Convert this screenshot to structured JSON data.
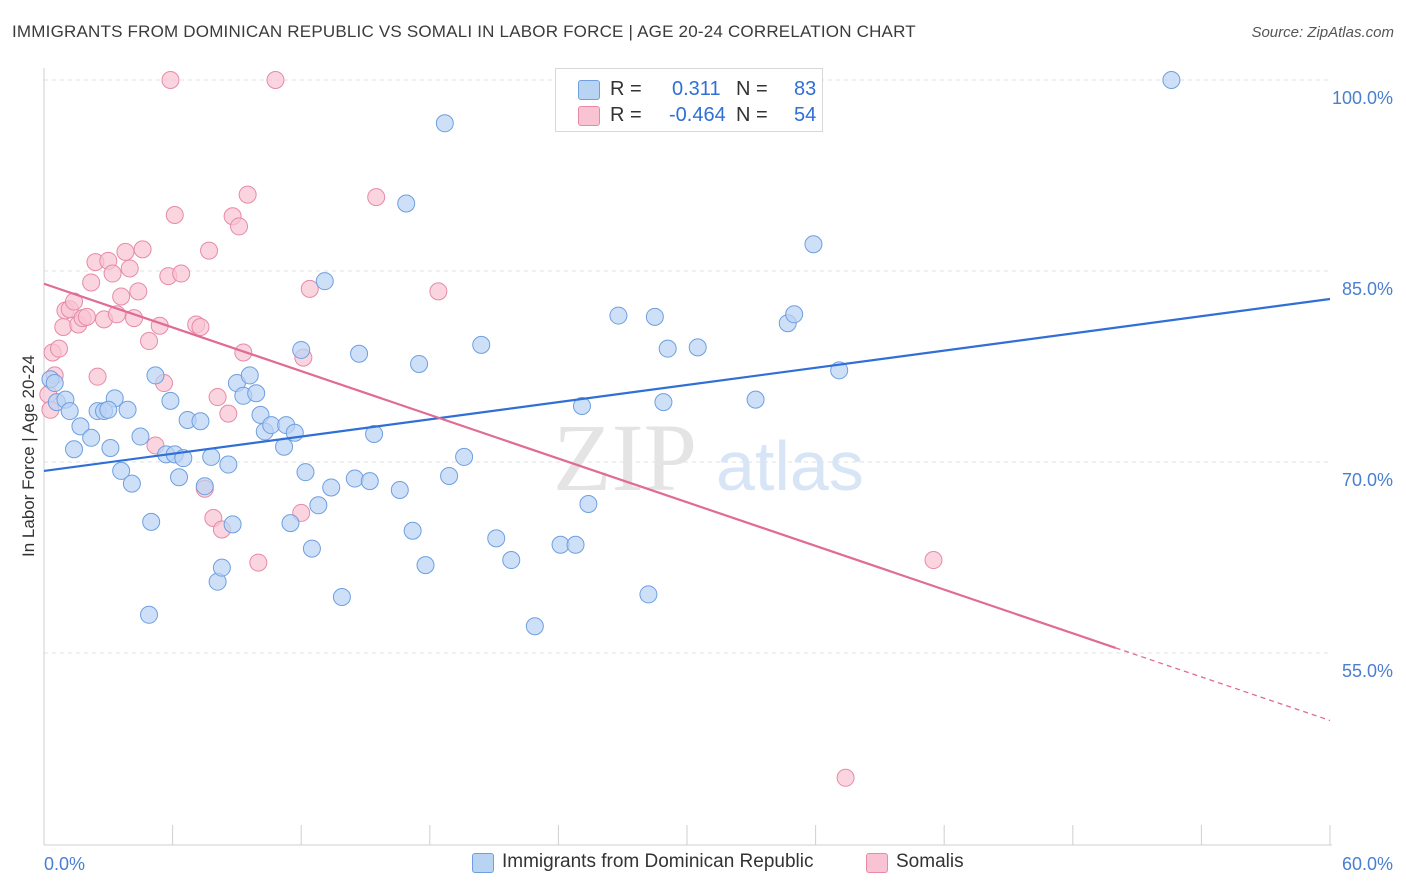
{
  "title": "IMMIGRANTS FROM DOMINICAN REPUBLIC VS SOMALI IN LABOR FORCE | AGE 20-24 CORRELATION CHART",
  "source": "Source: ZipAtlas.com",
  "watermark": {
    "zip": "ZIP",
    "atlas": "atlas"
  },
  "legend": {
    "rows": [
      {
        "r_label": "R =",
        "r_value": "0.311",
        "n_label": "N =",
        "n_value": "83"
      },
      {
        "r_label": "R =",
        "r_value": "-0.464",
        "n_label": "N =",
        "n_value": "54"
      }
    ]
  },
  "bottom_legend": [
    "Immigrants from Dominican Republic",
    "Somalis"
  ],
  "colors": {
    "blue_fill": "#b9d3f3",
    "blue_stroke": "#6e9fe0",
    "blue_line": "#2f6fd6",
    "pink_fill": "#f8c3d3",
    "pink_stroke": "#e78aa8",
    "pink_line": "#e06b94",
    "grid": "#e2e2e2",
    "tick_text": "#4a7fcf"
  },
  "chart_data": {
    "type": "scatter",
    "title": "IMMIGRANTS FROM DOMINICAN REPUBLIC VS SOMALI IN LABOR FORCE | AGE 20-24 CORRELATION CHART",
    "xlabel": "",
    "ylabel": "In Labor Force | Age 20-24",
    "xlim": [
      0,
      60
    ],
    "ylim": [
      40,
      102
    ],
    "x_tick_labels": [
      "0.0%",
      "60.0%"
    ],
    "y_ticks": [
      55,
      70,
      85,
      100
    ],
    "y_tick_labels": [
      "55.0%",
      "70.0%",
      "85.0%",
      "100.0%"
    ],
    "grid": true,
    "legend_position": "top-center",
    "series": [
      {
        "name": "Immigrants from Dominican Republic",
        "color": "#6e9fe0",
        "trend": {
          "x": [
            0,
            60
          ],
          "y": [
            69.3,
            82.8
          ]
        },
        "points": [
          [
            0.3,
            76.5
          ],
          [
            0.5,
            76.2
          ],
          [
            0.6,
            74.7
          ],
          [
            1.0,
            74.9
          ],
          [
            1.2,
            74.0
          ],
          [
            1.4,
            71.0
          ],
          [
            1.7,
            72.8
          ],
          [
            2.2,
            71.9
          ],
          [
            2.5,
            74.0
          ],
          [
            2.8,
            74.0
          ],
          [
            3.1,
            71.1
          ],
          [
            3.3,
            75.0
          ],
          [
            3.6,
            69.3
          ],
          [
            3.9,
            74.1
          ],
          [
            4.1,
            68.3
          ],
          [
            4.5,
            72.0
          ],
          [
            4.9,
            58.0
          ],
          [
            5.0,
            65.3
          ],
          [
            5.2,
            76.8
          ],
          [
            5.7,
            70.6
          ],
          [
            5.9,
            74.8
          ],
          [
            6.1,
            70.6
          ],
          [
            6.3,
            68.8
          ],
          [
            6.5,
            70.3
          ],
          [
            6.7,
            73.3
          ],
          [
            7.3,
            73.2
          ],
          [
            7.5,
            68.1
          ],
          [
            7.8,
            70.4
          ],
          [
            8.1,
            60.6
          ],
          [
            8.3,
            61.7
          ],
          [
            8.6,
            69.8
          ],
          [
            8.8,
            65.1
          ],
          [
            9.0,
            76.2
          ],
          [
            9.3,
            75.2
          ],
          [
            9.6,
            76.8
          ],
          [
            9.9,
            75.4
          ],
          [
            10.1,
            73.7
          ],
          [
            10.3,
            72.4
          ],
          [
            10.6,
            72.9
          ],
          [
            11.2,
            71.2
          ],
          [
            11.3,
            72.9
          ],
          [
            11.5,
            65.2
          ],
          [
            11.7,
            72.3
          ],
          [
            12.0,
            78.8
          ],
          [
            12.2,
            69.2
          ],
          [
            12.5,
            63.2
          ],
          [
            12.8,
            66.6
          ],
          [
            13.1,
            84.2
          ],
          [
            13.4,
            68.0
          ],
          [
            13.9,
            59.4
          ],
          [
            14.5,
            68.7
          ],
          [
            14.7,
            78.5
          ],
          [
            15.2,
            68.5
          ],
          [
            15.4,
            72.2
          ],
          [
            16.6,
            67.8
          ],
          [
            16.9,
            90.3
          ],
          [
            17.2,
            64.6
          ],
          [
            17.5,
            77.7
          ],
          [
            17.8,
            61.9
          ],
          [
            18.7,
            96.6
          ],
          [
            18.9,
            68.9
          ],
          [
            19.6,
            70.4
          ],
          [
            20.4,
            79.2
          ],
          [
            21.1,
            64.0
          ],
          [
            21.8,
            62.3
          ],
          [
            22.9,
            57.1
          ],
          [
            24.1,
            63.5
          ],
          [
            24.8,
            63.5
          ],
          [
            25.1,
            74.4
          ],
          [
            25.4,
            66.7
          ],
          [
            26.8,
            81.5
          ],
          [
            28.2,
            59.6
          ],
          [
            28.5,
            81.4
          ],
          [
            28.9,
            74.7
          ],
          [
            29.1,
            78.9
          ],
          [
            30.5,
            79.0
          ],
          [
            33.2,
            74.9
          ],
          [
            34.7,
            80.9
          ],
          [
            35.0,
            81.6
          ],
          [
            35.9,
            87.1
          ],
          [
            37.1,
            77.2
          ],
          [
            52.6,
            100.0
          ],
          [
            3.0,
            74.1
          ]
        ]
      },
      {
        "name": "Somalis",
        "color": "#e78aa8",
        "trend": {
          "x": [
            0,
            50
          ],
          "y": [
            84.0,
            55.4
          ]
        },
        "trend_dashed": {
          "x": [
            50,
            60
          ],
          "y": [
            55.4,
            49.7
          ]
        },
        "points": [
          [
            0.2,
            75.3
          ],
          [
            0.3,
            74.1
          ],
          [
            0.4,
            78.6
          ],
          [
            0.5,
            76.8
          ],
          [
            0.7,
            78.9
          ],
          [
            0.9,
            80.6
          ],
          [
            1.0,
            81.9
          ],
          [
            1.2,
            82.0
          ],
          [
            1.4,
            82.6
          ],
          [
            1.6,
            80.8
          ],
          [
            1.8,
            81.3
          ],
          [
            2.0,
            81.4
          ],
          [
            2.2,
            84.1
          ],
          [
            2.4,
            85.7
          ],
          [
            2.5,
            76.7
          ],
          [
            2.8,
            81.2
          ],
          [
            3.0,
            85.8
          ],
          [
            3.2,
            84.8
          ],
          [
            3.4,
            81.6
          ],
          [
            3.6,
            83.0
          ],
          [
            3.8,
            86.5
          ],
          [
            4.0,
            85.2
          ],
          [
            4.2,
            81.3
          ],
          [
            4.4,
            83.4
          ],
          [
            4.6,
            86.7
          ],
          [
            4.9,
            79.5
          ],
          [
            5.2,
            71.3
          ],
          [
            5.4,
            80.7
          ],
          [
            5.6,
            76.2
          ],
          [
            5.8,
            84.6
          ],
          [
            5.9,
            100.0
          ],
          [
            6.1,
            89.4
          ],
          [
            6.4,
            84.8
          ],
          [
            7.1,
            80.8
          ],
          [
            7.3,
            80.6
          ],
          [
            7.5,
            67.9
          ],
          [
            7.7,
            86.6
          ],
          [
            7.9,
            65.6
          ],
          [
            8.1,
            75.1
          ],
          [
            8.3,
            64.7
          ],
          [
            8.6,
            73.8
          ],
          [
            8.8,
            89.3
          ],
          [
            9.1,
            88.5
          ],
          [
            9.3,
            78.6
          ],
          [
            9.5,
            91.0
          ],
          [
            10.0,
            62.1
          ],
          [
            10.8,
            100.0
          ],
          [
            12.0,
            66.0
          ],
          [
            12.1,
            78.2
          ],
          [
            12.4,
            83.6
          ],
          [
            15.5,
            90.8
          ],
          [
            18.4,
            83.4
          ],
          [
            41.5,
            62.3
          ],
          [
            37.4,
            45.2
          ]
        ]
      }
    ]
  }
}
